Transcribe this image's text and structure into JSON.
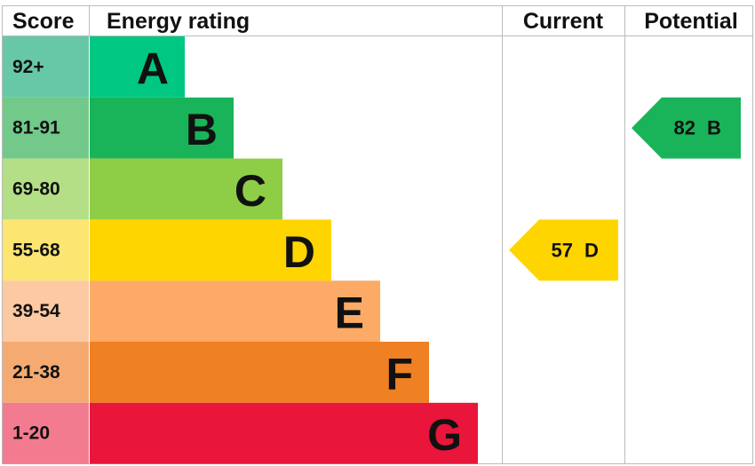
{
  "header": {
    "score": "Score",
    "rating": "Energy rating",
    "current": "Current",
    "potential": "Potential"
  },
  "rows": [
    {
      "score": "92+",
      "letter": "A",
      "score_color": "#66c8a6",
      "color": "#00c781"
    },
    {
      "score": "81-91",
      "letter": "B",
      "score_color": "#72c98a",
      "color": "#19b459"
    },
    {
      "score": "69-80",
      "letter": "C",
      "score_color": "#b4df86",
      "color": "#8dce46"
    },
    {
      "score": "55-68",
      "letter": "D",
      "score_color": "#fde572",
      "color": "#ffd500"
    },
    {
      "score": "39-54",
      "letter": "E",
      "score_color": "#fdc9a2",
      "color": "#fcaa65"
    },
    {
      "score": "21-38",
      "letter": "F",
      "score_color": "#f5aa72",
      "color": "#ef8023"
    },
    {
      "score": "1-20",
      "letter": "G",
      "score_color": "#f27b90",
      "color": "#e9153b"
    }
  ],
  "current": {
    "value": 57,
    "letter": "D"
  },
  "potential": {
    "value": 82,
    "letter": "B"
  }
}
